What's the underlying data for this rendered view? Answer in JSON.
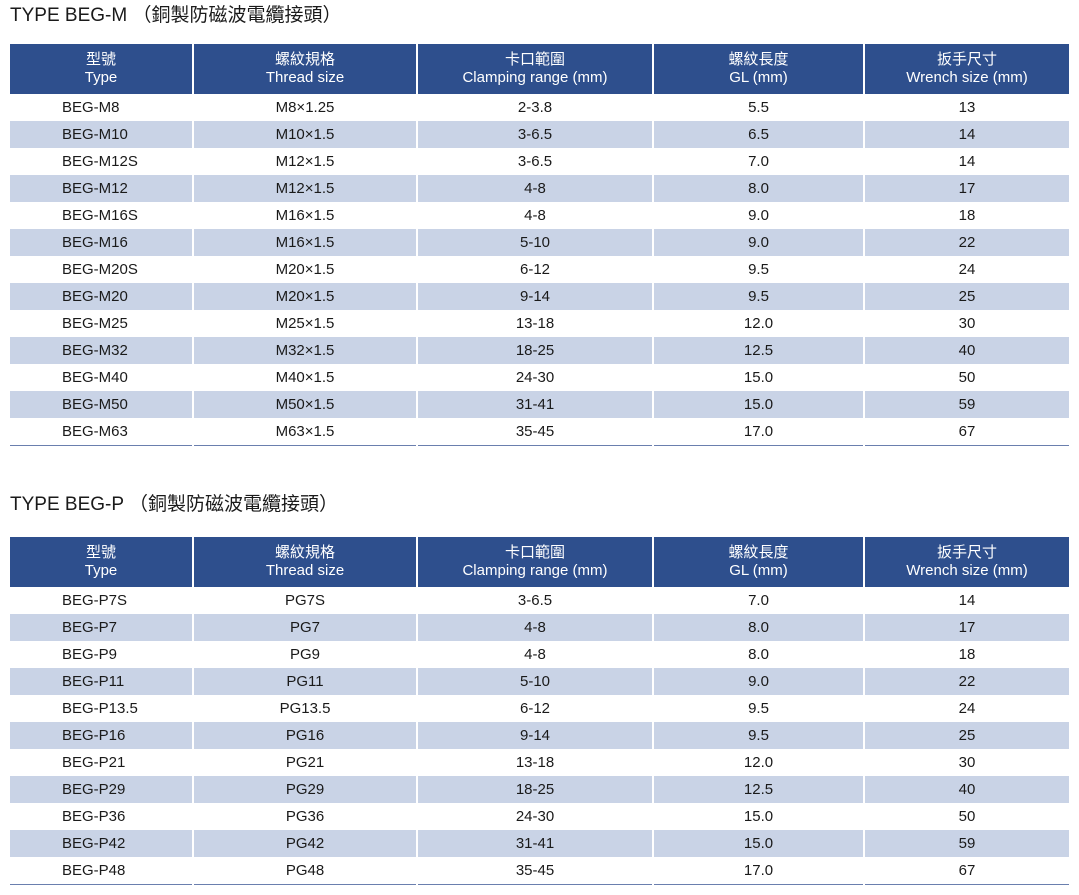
{
  "headers": [
    {
      "zh": "型號",
      "en": "Type"
    },
    {
      "zh": "螺紋規格",
      "en": "Thread size"
    },
    {
      "zh": "卡口範圍",
      "en": "Clamping range (mm)"
    },
    {
      "zh": "螺紋長度",
      "en": "GL (mm)"
    },
    {
      "zh": "扳手尺寸",
      "en": "Wrench size (mm)"
    }
  ],
  "tables": [
    {
      "title": "TYPE BEG-M （銅製防磁波電纜接頭）",
      "rows": [
        [
          "BEG-M8",
          "M8×1.25",
          "2-3.8",
          "5.5",
          "13"
        ],
        [
          "BEG-M10",
          "M10×1.5",
          "3-6.5",
          "6.5",
          "14"
        ],
        [
          "BEG-M12S",
          "M12×1.5",
          "3-6.5",
          "7.0",
          "14"
        ],
        [
          "BEG-M12",
          "M12×1.5",
          "4-8",
          "8.0",
          "17"
        ],
        [
          "BEG-M16S",
          "M16×1.5",
          "4-8",
          "9.0",
          "18"
        ],
        [
          "BEG-M16",
          "M16×1.5",
          "5-10",
          "9.0",
          "22"
        ],
        [
          "BEG-M20S",
          "M20×1.5",
          "6-12",
          "9.5",
          "24"
        ],
        [
          "BEG-M20",
          "M20×1.5",
          "9-14",
          "9.5",
          "25"
        ],
        [
          "BEG-M25",
          "M25×1.5",
          "13-18",
          "12.0",
          "30"
        ],
        [
          "BEG-M32",
          "M32×1.5",
          "18-25",
          "12.5",
          "40"
        ],
        [
          "BEG-M40",
          "M40×1.5",
          "24-30",
          "15.0",
          "50"
        ],
        [
          "BEG-M50",
          "M50×1.5",
          "31-41",
          "15.0",
          "59"
        ],
        [
          "BEG-M63",
          "M63×1.5",
          "35-45",
          "17.0",
          "67"
        ]
      ]
    },
    {
      "title": "TYPE BEG-P （銅製防磁波電纜接頭）",
      "rows": [
        [
          "BEG-P7S",
          "PG7S",
          "3-6.5",
          "7.0",
          "14"
        ],
        [
          "BEG-P7",
          "PG7",
          "4-8",
          "8.0",
          "17"
        ],
        [
          "BEG-P9",
          "PG9",
          "4-8",
          "8.0",
          "18"
        ],
        [
          "BEG-P11",
          "PG11",
          "5-10",
          "9.0",
          "22"
        ],
        [
          "BEG-P13.5",
          "PG13.5",
          "6-12",
          "9.5",
          "24"
        ],
        [
          "BEG-P16",
          "PG16",
          "9-14",
          "9.5",
          "25"
        ],
        [
          "BEG-P21",
          "PG21",
          "13-18",
          "12.0",
          "30"
        ],
        [
          "BEG-P29",
          "PG29",
          "18-25",
          "12.5",
          "40"
        ],
        [
          "BEG-P36",
          "PG36",
          "24-30",
          "15.0",
          "50"
        ],
        [
          "BEG-P42",
          "PG42",
          "31-41",
          "15.0",
          "59"
        ],
        [
          "BEG-P48",
          "PG48",
          "35-45",
          "17.0",
          "67"
        ]
      ]
    }
  ],
  "colors": {
    "header_bg": "#2e4f8d",
    "header_text": "#ffffff",
    "stripe_bg": "#c9d3e6"
  }
}
